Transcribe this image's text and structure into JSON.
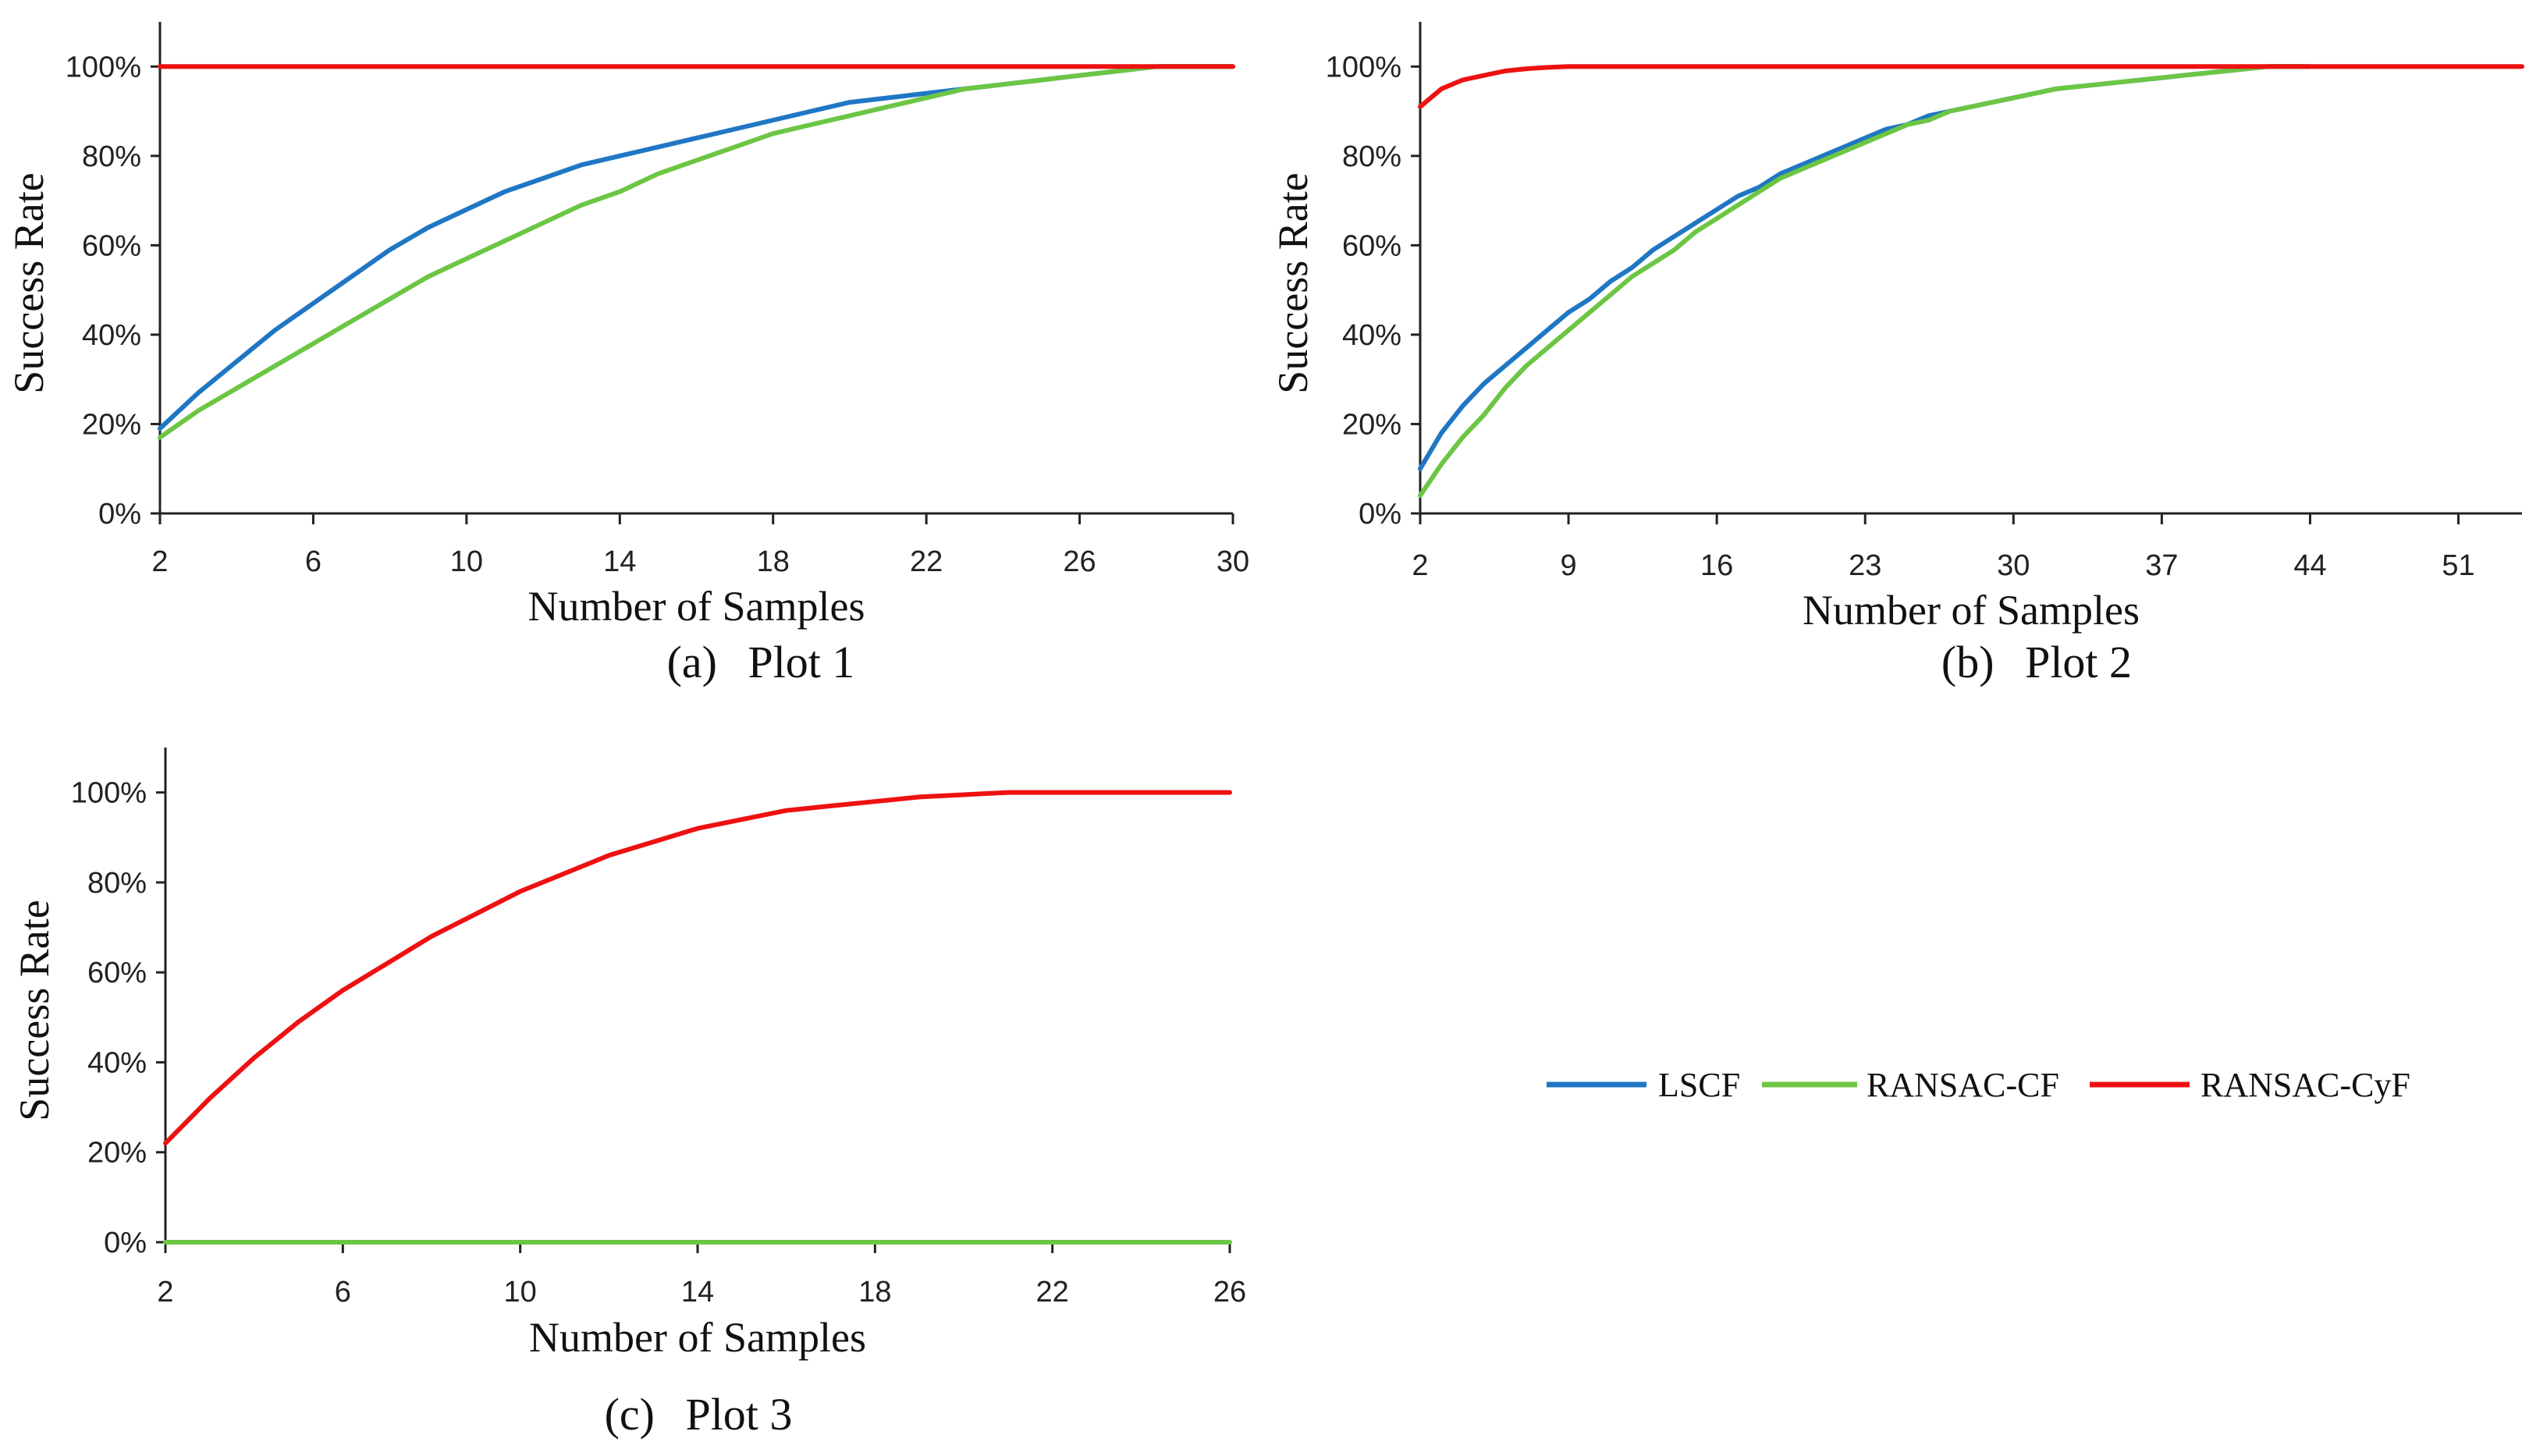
{
  "legend": [
    {
      "name": "LSCF",
      "color": "#1f77c4"
    },
    {
      "name": "RANSAC-CF",
      "color": "#6cc644"
    },
    {
      "name": "RANSAC-CyF",
      "color": "#ee1111"
    }
  ],
  "chart_data": [
    {
      "type": "line",
      "title": "Plot 1",
      "caption_letter": "(a)",
      "xlabel": "Number of Samples",
      "ylabel": "Success Rate",
      "x_ticks": [
        "2",
        "6",
        "10",
        "14",
        "18",
        "22",
        "26",
        "30"
      ],
      "y_ticks": [
        "0%",
        "20%",
        "40%",
        "60%",
        "80%",
        "100%"
      ],
      "xlim": [
        2,
        30
      ],
      "ylim": [
        0,
        110
      ],
      "series": [
        {
          "name": "LSCF",
          "x": [
            2,
            3,
            4,
            5,
            6,
            7,
            8,
            9,
            10,
            11,
            12,
            13,
            14,
            15,
            16,
            17,
            18,
            19,
            20,
            21,
            22,
            23,
            24,
            25,
            26,
            27,
            28,
            29,
            30
          ],
          "y": [
            19,
            27,
            34,
            41,
            47,
            53,
            59,
            64,
            68,
            72,
            75,
            78,
            80,
            82,
            84,
            86,
            88,
            90,
            92,
            93,
            94,
            95,
            96,
            97,
            98,
            99,
            100,
            100,
            100
          ]
        },
        {
          "name": "RANSAC-CF",
          "x": [
            2,
            3,
            4,
            5,
            6,
            7,
            8,
            9,
            10,
            11,
            12,
            13,
            14,
            15,
            16,
            17,
            18,
            19,
            20,
            21,
            22,
            23,
            24,
            25,
            26,
            27,
            28,
            29,
            30
          ],
          "y": [
            17,
            23,
            28,
            33,
            38,
            43,
            48,
            53,
            57,
            61,
            65,
            69,
            72,
            76,
            79,
            82,
            85,
            87,
            89,
            91,
            93,
            95,
            96,
            97,
            98,
            99,
            100,
            100,
            100
          ]
        },
        {
          "name": "RANSAC-CyF",
          "x": [
            2,
            30
          ],
          "y": [
            100,
            100
          ]
        }
      ]
    },
    {
      "type": "line",
      "title": "Plot 2",
      "caption_letter": "(b)",
      "xlabel": "Number of Samples",
      "ylabel": "Success Rate",
      "x_ticks": [
        "2",
        "9",
        "16",
        "23",
        "30",
        "37",
        "44",
        "51"
      ],
      "y_ticks": [
        "0%",
        "20%",
        "40%",
        "60%",
        "80%",
        "100%"
      ],
      "xlim": [
        2,
        54
      ],
      "ylim": [
        0,
        110
      ],
      "series": [
        {
          "name": "LSCF",
          "x": [
            2,
            3,
            4,
            5,
            6,
            7,
            8,
            9,
            10,
            11,
            12,
            13,
            14,
            15,
            16,
            17,
            18,
            19,
            20,
            21,
            22,
            23,
            24,
            25,
            26,
            27,
            28,
            30,
            32,
            34,
            36,
            38,
            40,
            42,
            44
          ],
          "y": [
            10,
            18,
            24,
            29,
            33,
            37,
            41,
            45,
            48,
            52,
            55,
            59,
            62,
            65,
            68,
            71,
            73,
            76,
            78,
            80,
            82,
            84,
            86,
            87,
            89,
            90,
            91,
            93,
            95,
            96,
            97,
            98,
            99,
            100,
            100
          ]
        },
        {
          "name": "RANSAC-CF",
          "x": [
            2,
            3,
            4,
            5,
            6,
            7,
            8,
            9,
            10,
            11,
            12,
            13,
            14,
            15,
            16,
            17,
            18,
            19,
            20,
            21,
            22,
            23,
            24,
            25,
            26,
            27,
            28,
            30,
            32,
            34,
            36,
            38,
            40,
            42,
            44
          ],
          "y": [
            4,
            11,
            17,
            22,
            28,
            33,
            37,
            41,
            45,
            49,
            53,
            56,
            59,
            63,
            66,
            69,
            72,
            75,
            77,
            79,
            81,
            83,
            85,
            87,
            88,
            90,
            91,
            93,
            95,
            96,
            97,
            98,
            99,
            100,
            100
          ]
        },
        {
          "name": "RANSAC-CyF",
          "x": [
            2,
            3,
            4,
            5,
            6,
            7,
            8,
            9,
            10,
            12,
            54
          ],
          "y": [
            91,
            95,
            97,
            98,
            99,
            99.5,
            99.8,
            100,
            100,
            100,
            100
          ]
        }
      ]
    },
    {
      "type": "line",
      "title": "Plot 3",
      "caption_letter": "(c)",
      "xlabel": "Number of Samples",
      "ylabel": "Success Rate",
      "x_ticks": [
        "2",
        "6",
        "10",
        "14",
        "18",
        "22",
        "26"
      ],
      "y_ticks": [
        "0%",
        "20%",
        "40%",
        "60%",
        "80%",
        "100%"
      ],
      "xlim": [
        2,
        26
      ],
      "ylim": [
        0,
        110
      ],
      "series": [
        {
          "name": "RANSAC-CF",
          "x": [
            2,
            26
          ],
          "y": [
            0,
            0
          ]
        },
        {
          "name": "RANSAC-CyF",
          "x": [
            2,
            3,
            4,
            5,
            6,
            7,
            8,
            9,
            10,
            11,
            12,
            13,
            14,
            15,
            16,
            17,
            18,
            19,
            20,
            21,
            22,
            23,
            24,
            25,
            26
          ],
          "y": [
            22,
            32,
            41,
            49,
            56,
            62,
            68,
            73,
            78,
            82,
            86,
            89,
            92,
            94,
            96,
            97,
            98,
            99,
            99.5,
            100,
            100,
            100,
            100,
            100,
            100
          ]
        }
      ]
    }
  ]
}
